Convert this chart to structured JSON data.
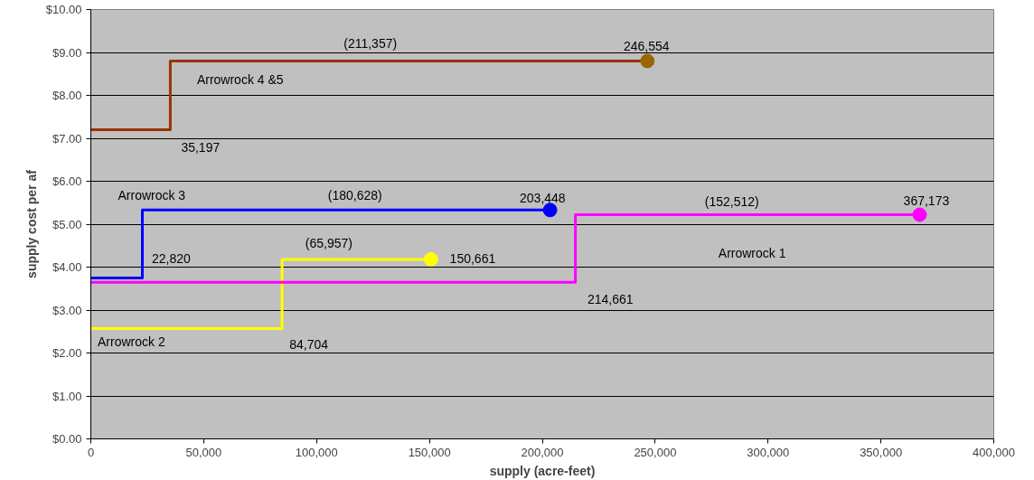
{
  "chart_data": {
    "type": "step",
    "xlabel": "supply (acre-feet)",
    "ylabel": "supply cost per af",
    "series": [
      {
        "color": "#993300",
        "x": [
          0,
          35197,
          246554
        ],
        "values": [
          7.2,
          8.8,
          8.8
        ]
      },
      {
        "color": "#0000ff",
        "x": [
          0,
          22820,
          203448
        ],
        "values": [
          3.75,
          5.33,
          5.33
        ]
      },
      {
        "color": "#ffff00",
        "x": [
          0,
          84704,
          150661
        ],
        "values": [
          2.57,
          4.18,
          4.18
        ]
      },
      {
        "color": "#ff00ff",
        "x": [
          0,
          214661,
          367173
        ],
        "values": [
          3.65,
          5.22,
          5.22
        ]
      },
      {
        "type": "scatter",
        "color": "#996600",
        "x": [
          246554
        ],
        "values": [
          8.8
        ]
      },
      {
        "type": "scatter",
        "color": "#0000ff",
        "x": [
          203448
        ],
        "values": [
          5.33
        ]
      },
      {
        "type": "scatter",
        "color": "#ffff00",
        "x": [
          150661
        ],
        "values": [
          4.18
        ]
      },
      {
        "type": "scatter",
        "color": "#ff00ff",
        "x": [
          367173
        ],
        "values": [
          5.22
        ]
      }
    ],
    "xlim": [
      0,
      400000
    ],
    "xticks": [
      {
        "value": 0,
        "label": "0"
      },
      {
        "value": 50000,
        "label": "50,000"
      },
      {
        "value": 100000,
        "label": "100,000"
      },
      {
        "value": 150000,
        "label": "150,000"
      },
      {
        "value": 200000,
        "label": "200,000"
      },
      {
        "value": 250000,
        "label": "250,000"
      },
      {
        "value": 300000,
        "label": "300,000"
      },
      {
        "value": 350000,
        "label": "350,000"
      },
      {
        "value": 400000,
        "label": "400,000"
      }
    ],
    "ylim": [
      0,
      10
    ],
    "yticks": [
      {
        "value": 0,
        "label": "$0.00"
      },
      {
        "value": 1,
        "label": "$1.00"
      },
      {
        "value": 2,
        "label": "$2.00"
      },
      {
        "value": 3,
        "label": "$3.00"
      },
      {
        "value": 4,
        "label": "$4.00"
      },
      {
        "value": 5,
        "label": "$5.00"
      },
      {
        "value": 6,
        "label": "$6.00"
      },
      {
        "value": 7,
        "label": "$7.00"
      },
      {
        "value": 8,
        "label": "$8.00"
      },
      {
        "value": 9,
        "label": "$9.00"
      },
      {
        "value": 10,
        "label": "$10.00"
      }
    ],
    "grid": "y",
    "line_style": "solid",
    "annotations": [
      "(211,357)",
      "246,554",
      "Arrowrock 4 &5",
      "35,197",
      "Arrowrock 3",
      "(180,628)",
      "203,448",
      "22,820",
      "(65,957)",
      "150,661",
      "(152,512)",
      "367,173",
      "Arrowrock 1",
      "214,661",
      "84,704",
      "Arrowrock 2"
    ]
  }
}
